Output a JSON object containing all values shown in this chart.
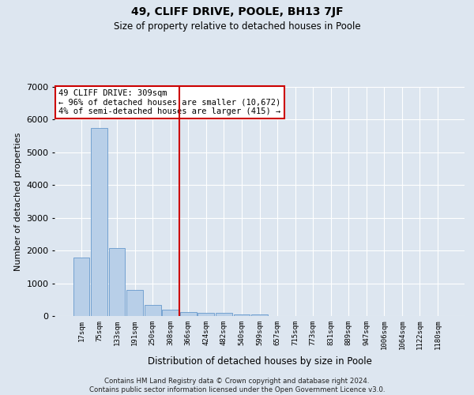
{
  "title1": "49, CLIFF DRIVE, POOLE, BH13 7JF",
  "title2": "Size of property relative to detached houses in Poole",
  "xlabel": "Distribution of detached houses by size in Poole",
  "ylabel": "Number of detached properties",
  "bar_labels": [
    "17sqm",
    "75sqm",
    "133sqm",
    "191sqm",
    "250sqm",
    "308sqm",
    "366sqm",
    "424sqm",
    "482sqm",
    "540sqm",
    "599sqm",
    "657sqm",
    "715sqm",
    "773sqm",
    "831sqm",
    "889sqm",
    "947sqm",
    "1006sqm",
    "1064sqm",
    "1122sqm",
    "1180sqm"
  ],
  "bar_values": [
    1780,
    5750,
    2080,
    790,
    350,
    185,
    110,
    95,
    85,
    60,
    55,
    0,
    0,
    0,
    0,
    0,
    0,
    0,
    0,
    0,
    0
  ],
  "bar_color": "#b8cfe8",
  "bar_edge_color": "#6699cc",
  "vline_x": 5.5,
  "vline_color": "#cc0000",
  "annotation_text": "49 CLIFF DRIVE: 309sqm\n← 96% of detached houses are smaller (10,672)\n4% of semi-detached houses are larger (415) →",
  "annotation_box_color": "#cc0000",
  "annotation_fill": "white",
  "ylim": [
    0,
    7000
  ],
  "footnote": "Contains HM Land Registry data © Crown copyright and database right 2024.\nContains public sector information licensed under the Open Government Licence v3.0.",
  "bg_color": "#dde6f0",
  "plot_bg_color": "#dde6f0"
}
